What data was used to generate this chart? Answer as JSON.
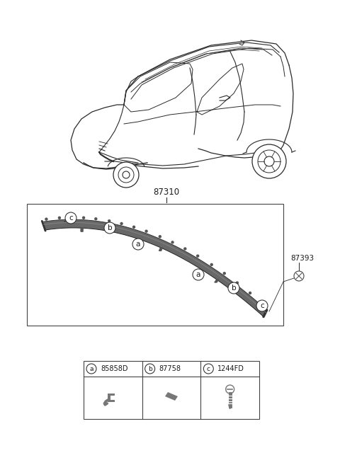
{
  "bg_color": "#ffffff",
  "fig_width": 4.8,
  "fig_height": 6.57,
  "dpi": 100,
  "part_number_87310": "87310",
  "part_number_87393": "87393",
  "legend_items": [
    {
      "label": "a",
      "code": "85858D"
    },
    {
      "label": "b",
      "code": "87758"
    },
    {
      "label": "c",
      "code": "1244FD"
    }
  ],
  "line_color": "#2a2a2a",
  "text_color": "#1a1a1a",
  "moulding_color": "#555555",
  "moulding_edge_color": "#333333"
}
